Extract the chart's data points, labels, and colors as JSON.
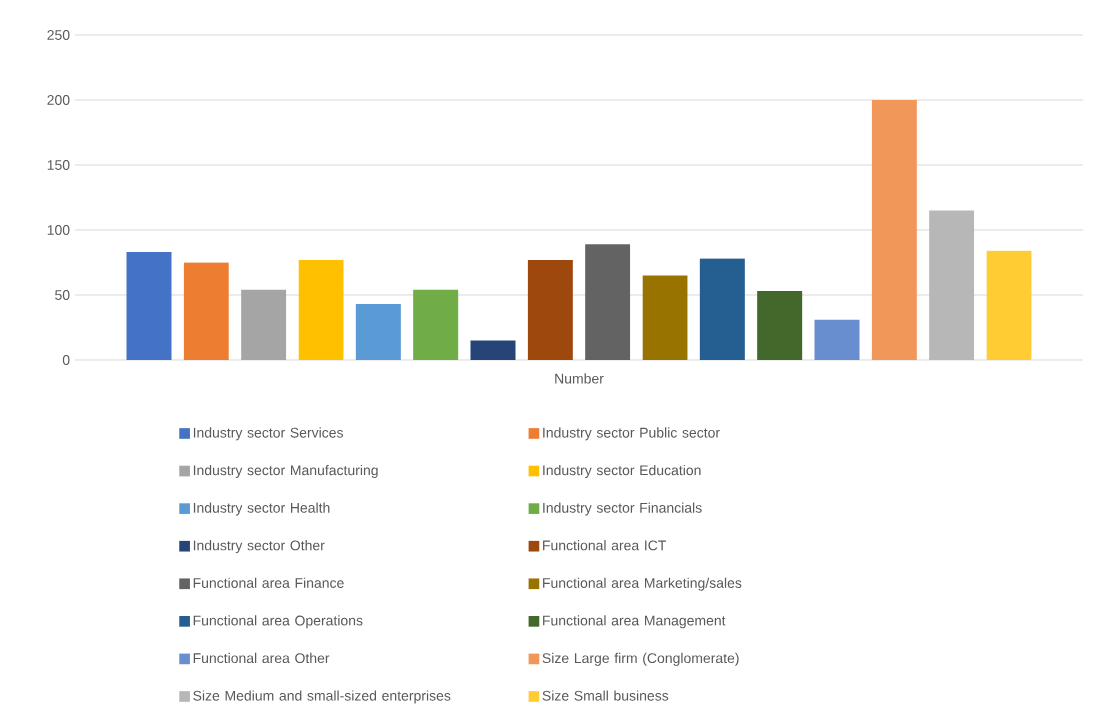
{
  "chart_data": {
    "type": "bar",
    "categories": [
      "Number"
    ],
    "ylim": [
      0,
      250
    ],
    "yticks": [
      0,
      50,
      100,
      150,
      200,
      250
    ],
    "grid": "y",
    "legend": "bottom",
    "series": [
      {
        "name": "Industry sector Services",
        "color": "#4472c4",
        "values": [
          83
        ]
      },
      {
        "name": "Industry sector Public sector",
        "color": "#ed7d31",
        "values": [
          75
        ]
      },
      {
        "name": "Industry sector Manufacturing",
        "color": "#a5a5a5",
        "values": [
          54
        ]
      },
      {
        "name": "Industry sector Education",
        "color": "#ffc000",
        "values": [
          77
        ]
      },
      {
        "name": "Industry sector Health",
        "color": "#5b9bd5",
        "values": [
          43
        ]
      },
      {
        "name": "Industry sector Financials",
        "color": "#70ad47",
        "values": [
          54
        ]
      },
      {
        "name": "Industry sector Other",
        "color": "#264478",
        "values": [
          15
        ]
      },
      {
        "name": "Functional area ICT",
        "color": "#9e480e",
        "values": [
          77
        ]
      },
      {
        "name": "Functional area Finance",
        "color": "#636363",
        "values": [
          89
        ]
      },
      {
        "name": "Functional area Marketing/sales",
        "color": "#997300",
        "values": [
          65
        ]
      },
      {
        "name": "Functional area Operations",
        "color": "#255e91",
        "values": [
          78
        ]
      },
      {
        "name": "Functional area Management",
        "color": "#43682b",
        "values": [
          53
        ]
      },
      {
        "name": "Functional area Other",
        "color": "#698ed0",
        "values": [
          31
        ]
      },
      {
        "name": "Size Large firm (Conglomerate)",
        "color": "#f1975a",
        "values": [
          200
        ]
      },
      {
        "name": "Size Medium and small-sized enterprises",
        "color": "#b7b7b7",
        "values": [
          115
        ]
      },
      {
        "name": "Size Small business",
        "color": "#ffcd33",
        "values": [
          84
        ]
      }
    ]
  }
}
